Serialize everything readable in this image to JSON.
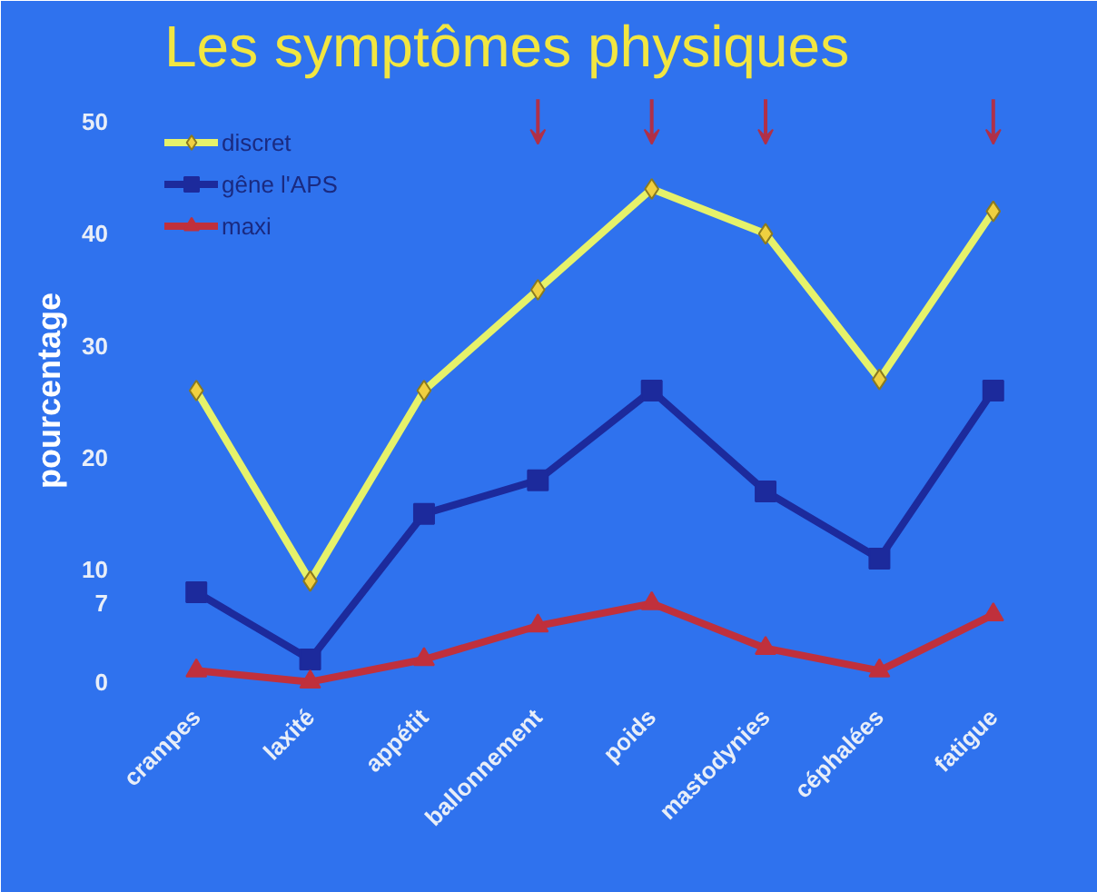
{
  "chart_data": {
    "type": "line",
    "title": "Les symptômes  physiques",
    "ylabel": "pourcentage",
    "categories": [
      "crampes",
      "laxité",
      "appétit",
      "ballonnement",
      "poids",
      "mastodynies",
      "céphalées",
      "fatigue"
    ],
    "series": [
      {
        "name": "discret",
        "color": "#e6f26a",
        "marker": "diamond",
        "values": [
          26,
          9,
          26,
          35,
          44,
          40,
          27,
          42
        ]
      },
      {
        "name": "gêne l'APS",
        "color": "#1c2a9c",
        "marker": "square",
        "values": [
          8,
          2,
          15,
          18,
          26,
          17,
          11,
          26
        ]
      },
      {
        "name": "maxi",
        "color": "#c0303c",
        "marker": "triangle",
        "values": [
          1,
          0,
          2,
          5,
          7,
          3,
          1,
          6
        ]
      }
    ],
    "ylim": [
      -1,
      53
    ],
    "yticks": [
      0,
      7,
      10,
      20,
      30,
      40,
      50
    ],
    "grid": false,
    "legend": "top left"
  }
}
